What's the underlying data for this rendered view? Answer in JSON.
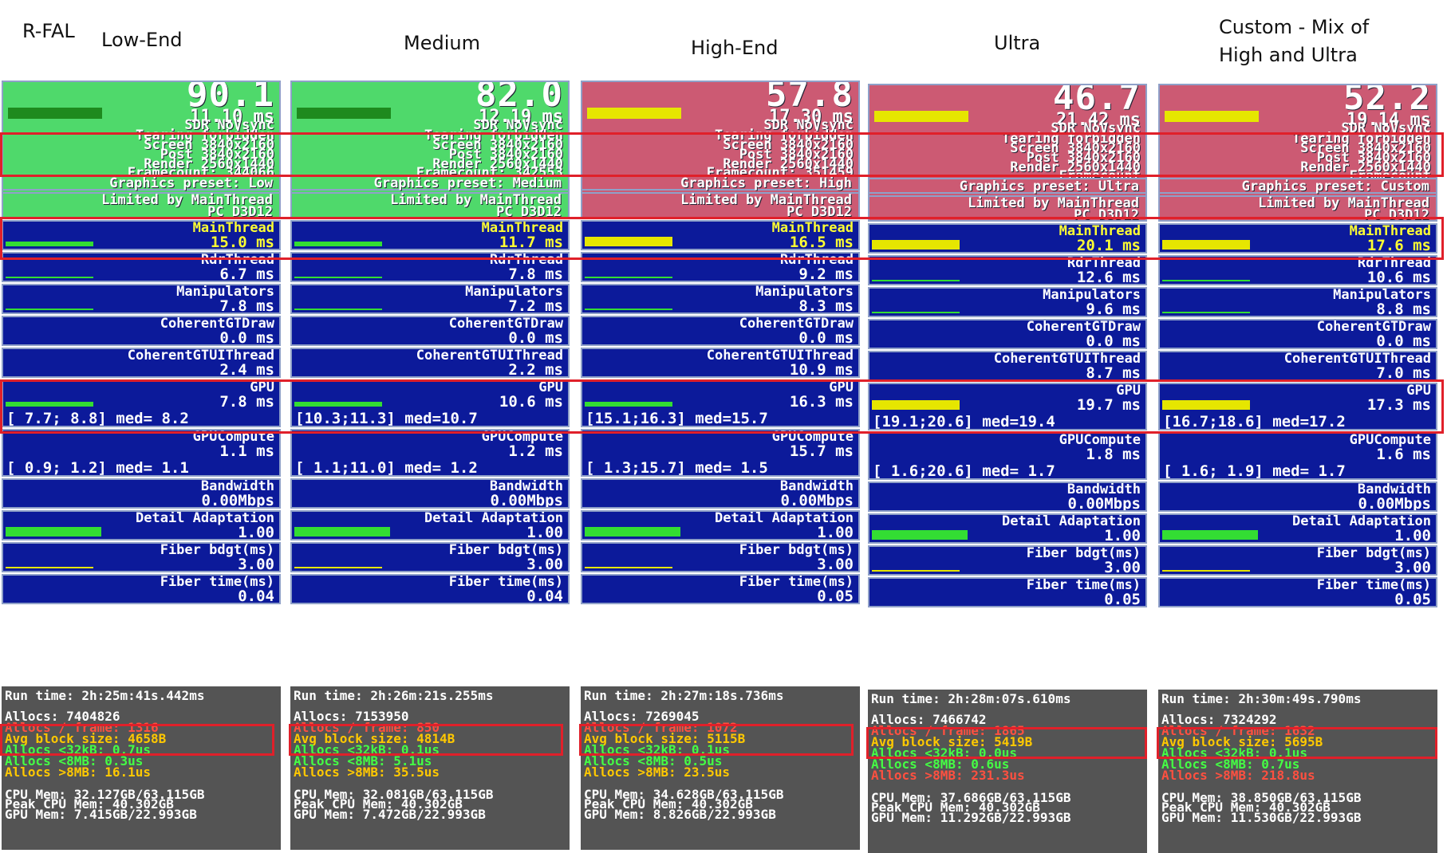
{
  "headers": {
    "rfal": "R-FAL",
    "low": "Low-End",
    "medium": "Medium",
    "high": "High-End",
    "ultra": "Ultra",
    "custom": "Custom - Mix of\nHigh and Ultra"
  },
  "columns": [
    {
      "fps": "90.1",
      "frame_ms": "11.10 ms",
      "vsync": "SDR NoVsync",
      "tearing": "Tearing forbidden",
      "screen": "Screen 3840x2160",
      "post": "Post 3840x2160",
      "render": "Render 2560x1440",
      "framecount": "Framecount: 344066",
      "preset": "Graphics preset: Low",
      "limited": "Limited by MainThread",
      "platform": "PC D3D12",
      "main_label": "MainThread",
      "main_val": "15.0 ms",
      "rdr_label": "RdrThread",
      "rdr_val": "6.7 ms",
      "manip_label": "Manipulators",
      "manip_val": "7.8 ms",
      "cgt_label": "CoherentGTDraw",
      "cgt_val": "0.0 ms",
      "cgtui_label": "CoherentGTUIThread",
      "cgtui_val": "2.4 ms",
      "gpu_label": "GPU",
      "gpu_val": "7.8 ms",
      "gpu_range": "[ 7.7; 8.8] med= 8.2",
      "gpuc_label": "GPUCompute",
      "gpuc_val": "1.1 ms",
      "gpuc_range": "[ 0.9; 1.2] med= 1.1",
      "bw_label": "Bandwidth",
      "bw_val": "0.00Mbps",
      "detail_label": "Detail Adaptation",
      "detail_val": "1.00",
      "fbdgt_label": "Fiber bdgt(ms)",
      "fbdgt_val": "3.00",
      "ftime_label": "Fiber time(ms)",
      "ftime_val": "0.04",
      "runtime": "Run time: 2h:25m:41s.442ms",
      "allocs": "Allocs: 7404826",
      "allocs_frame": "Allocs / frame: 1316",
      "avg_block": "Avg block size: 4658B",
      "a32": "Allocs <32kB: 0.7us",
      "a8": "Allocs <8MB: 0.3us",
      "a8g": "Allocs >8MB: 16.1us",
      "cpu_mem": "CPU Mem: 32.127GB/63.115GB",
      "peak_cpu": "Peak CPU Mem: 40.302GB",
      "gpu_mem": "GPU Mem: 7.415GB/22.993GB",
      "state": "good"
    },
    {
      "fps": "82.0",
      "frame_ms": "12.19 ms",
      "vsync": "SDR NoVsync",
      "tearing": "Tearing forbidden",
      "screen": "Screen 3840x2160",
      "post": "Post 3840x2160",
      "render": "Render 2560x1440",
      "framecount": "Framecount: 342553",
      "preset": "Graphics preset: Medium",
      "limited": "Limited by MainThread",
      "platform": "PC D3D12",
      "main_label": "MainThread",
      "main_val": "11.7 ms",
      "rdr_label": "RdrThread",
      "rdr_val": "7.8 ms",
      "manip_label": "Manipulators",
      "manip_val": "7.2 ms",
      "cgt_label": "CoherentGTDraw",
      "cgt_val": "0.0 ms",
      "cgtui_label": "CoherentGTUIThread",
      "cgtui_val": "2.2 ms",
      "gpu_label": "GPU",
      "gpu_val": "10.6 ms",
      "gpu_range": "[10.3;11.3] med=10.7",
      "gpuc_label": "GPUCompute",
      "gpuc_val": "1.2 ms",
      "gpuc_range": "[ 1.1;11.0] med= 1.2",
      "bw_label": "Bandwidth",
      "bw_val": "0.00Mbps",
      "detail_label": "Detail Adaptation",
      "detail_val": "1.00",
      "fbdgt_label": "Fiber bdgt(ms)",
      "fbdgt_val": "3.00",
      "ftime_label": "Fiber time(ms)",
      "ftime_val": "0.04",
      "runtime": "Run time: 2h:26m:21s.255ms",
      "allocs": "Allocs: 7153950",
      "allocs_frame": "Allocs / frame: 850",
      "avg_block": "Avg block size: 4814B",
      "a32": "Allocs <32kB: 0.1us",
      "a8": "Allocs <8MB: 5.1us",
      "a8g": "Allocs >8MB: 35.5us",
      "cpu_mem": "CPU Mem: 32.081GB/63.115GB",
      "peak_cpu": "Peak CPU Mem: 40.302GB",
      "gpu_mem": "GPU Mem: 7.472GB/22.993GB",
      "state": "good"
    },
    {
      "fps": "57.8",
      "frame_ms": "17.30 ms",
      "vsync": "SDR NoVsync",
      "tearing": "Tearing forbidden",
      "screen": "Screen 3840x2160",
      "post": "Post 3840x2160",
      "render": "Render 2560x1440",
      "framecount": "Framecount: 351459",
      "preset": "Graphics preset: High",
      "limited": "Limited by MainThread",
      "platform": "PC D3D12",
      "main_label": "MainThread",
      "main_val": "16.5 ms",
      "rdr_label": "RdrThread",
      "rdr_val": "9.2 ms",
      "manip_label": "Manipulators",
      "manip_val": "8.3 ms",
      "cgt_label": "CoherentGTDraw",
      "cgt_val": "0.0 ms",
      "cgtui_label": "CoherentGTUIThread",
      "cgtui_val": "10.9 ms",
      "gpu_label": "GPU",
      "gpu_val": "16.3 ms",
      "gpu_range": "[15.1;16.3] med=15.7",
      "gpuc_label": "GPUCompute",
      "gpuc_val": "15.7 ms",
      "gpuc_range": "[ 1.3;15.7] med= 1.5",
      "bw_label": "Bandwidth",
      "bw_val": "0.00Mbps",
      "detail_label": "Detail Adaptation",
      "detail_val": "1.00",
      "fbdgt_label": "Fiber bdgt(ms)",
      "fbdgt_val": "3.00",
      "ftime_label": "Fiber time(ms)",
      "ftime_val": "0.05",
      "runtime": "Run time: 2h:27m:18s.736ms",
      "allocs": "Allocs: 7269045",
      "allocs_frame": "Allocs / frame: 1072",
      "avg_block": "Avg block size: 5115B",
      "a32": "Allocs <32kB: 0.1us",
      "a8": "Allocs <8MB: 0.5us",
      "a8g": "Allocs >8MB: 23.5us",
      "cpu_mem": "CPU Mem: 34.628GB/63.115GB",
      "peak_cpu": "Peak CPU Mem: 40.302GB",
      "gpu_mem": "GPU Mem: 8.826GB/22.993GB",
      "state": "bad"
    },
    {
      "fps": "46.7",
      "frame_ms": "21.42 ms",
      "vsync": "SDR NoVsync",
      "tearing": "Tearing forbidden",
      "screen": "Screen 3840x2160",
      "post": "Post 3840x2160",
      "render": "Render 2560x1440",
      "framecount": "Framecount",
      "preset": "Graphics preset: Ultra",
      "limited": "Limited by MainThread",
      "platform": "PC D3D12",
      "main_label": "MainThread",
      "main_val": "20.1 ms",
      "rdr_label": "RdrThread",
      "rdr_val": "12.6 ms",
      "manip_label": "Manipulators",
      "manip_val": "9.6 ms",
      "cgt_label": "CoherentGTDraw",
      "cgt_val": "0.0 ms",
      "cgtui_label": "CoherentGTUIThread",
      "cgtui_val": "8.7 ms",
      "gpu_label": "GPU",
      "gpu_val": "19.7 ms",
      "gpu_range": "[19.1;20.6] med=19.4",
      "gpuc_label": "GPUCompute",
      "gpuc_val": "1.8 ms",
      "gpuc_range": "[ 1.6;20.6] med= 1.7",
      "bw_label": "Bandwidth",
      "bw_val": "0.00Mbps",
      "detail_label": "Detail Adaptation",
      "detail_val": "1.00",
      "fbdgt_label": "Fiber bdgt(ms)",
      "fbdgt_val": "3.00",
      "ftime_label": "Fiber time(ms)",
      "ftime_val": "0.05",
      "runtime": "Run time: 2h:28m:07s.610ms",
      "allocs": "Allocs: 7466742",
      "allocs_frame": "Allocs / frame: 1865",
      "avg_block": "Avg block size: 5419B",
      "a32": "Allocs <32kB: 0.0us",
      "a8": "Allocs <8MB: 0.6us",
      "a8g": "Allocs >8MB: 231.3us",
      "cpu_mem": "CPU Mem: 37.686GB/63.115GB",
      "peak_cpu": "Peak CPU Mem: 40.302GB",
      "gpu_mem": "GPU Mem: 11.292GB/22.993GB",
      "state": "bad"
    },
    {
      "fps": "52.2",
      "frame_ms": "19.14 ms",
      "vsync": "SDR NoVsync",
      "tearing": "Tearing forbidden",
      "screen": "Screen 3840x2160",
      "post": "Post 3840x2160",
      "render": "Render 2560x1440",
      "framecount": "Framecount",
      "preset": "Graphics preset: Custom",
      "limited": "Limited by MainThread",
      "platform": "PC D3D12",
      "main_label": "MainThread",
      "main_val": "17.6 ms",
      "rdr_label": "RdrThread",
      "rdr_val": "10.6 ms",
      "manip_label": "Manipulators",
      "manip_val": "8.8 ms",
      "cgt_label": "CoherentGTDraw",
      "cgt_val": "0.0 ms",
      "cgtui_label": "CoherentGTUIThread",
      "cgtui_val": "7.0 ms",
      "gpu_label": "GPU",
      "gpu_val": "17.3 ms",
      "gpu_range": "[16.7;18.6] med=17.2",
      "gpuc_label": "GPUCompute",
      "gpuc_val": "1.6 ms",
      "gpuc_range": "[ 1.6; 1.9] med= 1.7",
      "bw_label": "Bandwidth",
      "bw_val": "0.00Mbps",
      "detail_label": "Detail Adaptation",
      "detail_val": "1.00",
      "fbdgt_label": "Fiber bdgt(ms)",
      "fbdgt_val": "3.00",
      "ftime_label": "Fiber time(ms)",
      "ftime_val": "0.05",
      "runtime": "Run time: 2h:30m:49s.790ms",
      "allocs": "Allocs: 7324292",
      "allocs_frame": "Allocs / frame: 1632",
      "avg_block": "Avg block size: 5695B",
      "a32": "Allocs <32kB: 0.1us",
      "a8": "Allocs <8MB: 0.7us",
      "a8g": "Allocs >8MB: 218.8us",
      "cpu_mem": "CPU Mem: 38.850GB/63.115GB",
      "peak_cpu": "Peak CPU Mem: 40.302GB",
      "gpu_mem": "GPU Mem: 11.530GB/22.993GB",
      "state": "bad"
    }
  ],
  "colors": {
    "good_bg": "#4fd96b",
    "bad_bg": "#cc5a73",
    "panel_bg": "#0c1a9a",
    "stats_bg": "#545454",
    "highlight": "#e0202a"
  }
}
